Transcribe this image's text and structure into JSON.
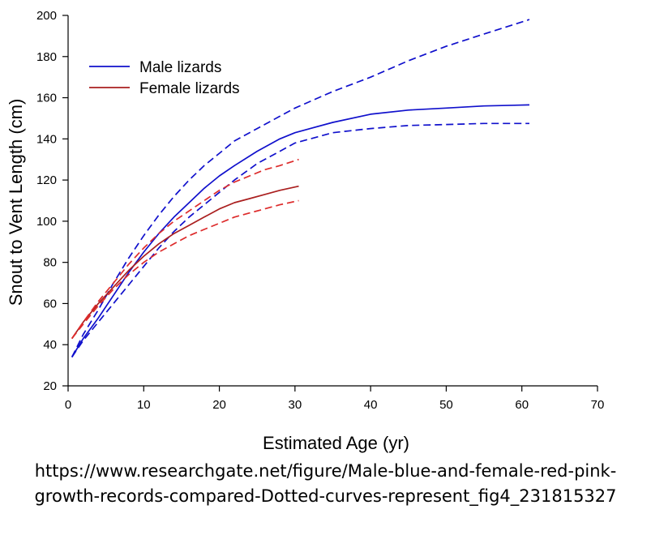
{
  "chart_data": {
    "type": "line",
    "title": "",
    "xlabel": "Estimated Age (yr)",
    "ylabel": "Snout to Vent Length (cm)",
    "xlim": [
      0,
      70
    ],
    "ylim": [
      20,
      200
    ],
    "xticks": [
      0,
      10,
      20,
      30,
      40,
      50,
      60,
      70
    ],
    "yticks": [
      20,
      40,
      60,
      80,
      100,
      120,
      140,
      160,
      180,
      200
    ],
    "grid": false,
    "legend_position": "top-left",
    "series": [
      {
        "name": "Male lizards",
        "color": "#1010cc",
        "style": "solid",
        "x": [
          0.5,
          2,
          4,
          6,
          8,
          10,
          12,
          14,
          16,
          18,
          20,
          22,
          25,
          28,
          30,
          35,
          40,
          45,
          50,
          55,
          61
        ],
        "y": [
          34,
          43,
          53,
          64,
          75,
          85,
          94,
          102,
          109,
          116,
          122,
          127,
          134,
          140,
          143,
          148,
          152,
          154,
          155,
          156,
          156.5
        ]
      },
      {
        "name": "",
        "color": "#1010cc",
        "style": "dashed",
        "x": [
          0.5,
          2,
          4,
          6,
          8,
          10,
          12,
          14,
          16,
          18,
          20,
          22,
          25,
          28,
          30,
          35,
          40,
          45,
          50,
          55,
          61
        ],
        "y": [
          34,
          45,
          57,
          70,
          82,
          93,
          103,
          112,
          120,
          127,
          133,
          139,
          145,
          151,
          155,
          163,
          170,
          178,
          185,
          191,
          198
        ]
      },
      {
        "name": "",
        "color": "#1010cc",
        "style": "dashed",
        "x": [
          0.5,
          2,
          4,
          6,
          8,
          10,
          12,
          14,
          16,
          18,
          20,
          22,
          25,
          28,
          30,
          35,
          40,
          45,
          50,
          55,
          61
        ],
        "y": [
          34,
          42,
          51,
          60,
          69,
          78,
          87,
          95,
          102,
          108,
          114,
          120,
          128,
          134,
          138,
          143,
          145,
          146.5,
          147,
          147.5,
          147.5
        ]
      },
      {
        "name": "Female lizards",
        "color": "#aa1f1f",
        "style": "solid",
        "x": [
          0.5,
          2,
          4,
          6,
          8,
          10,
          12,
          14,
          16,
          18,
          20,
          22,
          24,
          26,
          28,
          30.5
        ],
        "y": [
          43,
          51,
          60,
          68,
          76,
          83,
          89,
          94,
          98,
          102,
          106,
          109,
          111,
          113,
          115,
          117
        ]
      },
      {
        "name": "",
        "color": "#dd2b2b",
        "style": "dashed",
        "x": [
          0.5,
          2,
          4,
          6,
          8,
          10,
          12,
          14,
          16,
          18,
          20,
          22,
          24,
          26,
          28,
          30.5
        ],
        "y": [
          43,
          51,
          61,
          70,
          79,
          87,
          94,
          100,
          105,
          110,
          115,
          119,
          122,
          125,
          127,
          130
        ]
      },
      {
        "name": "",
        "color": "#dd2b2b",
        "style": "dashed",
        "x": [
          0.5,
          2,
          4,
          6,
          8,
          10,
          12,
          14,
          16,
          18,
          20,
          22,
          24,
          26,
          28,
          30.5
        ],
        "y": [
          43,
          50,
          59,
          67,
          74,
          80,
          85,
          89,
          93,
          96,
          99,
          102,
          104,
          106,
          108,
          110
        ]
      }
    ]
  },
  "caption": {
    "line1": "https://www.researchgate.net/figure/Male-blue-and-female-red-pink-",
    "line2": "growth-records-compared-Dotted-curves-represent_fig4_231815327"
  }
}
